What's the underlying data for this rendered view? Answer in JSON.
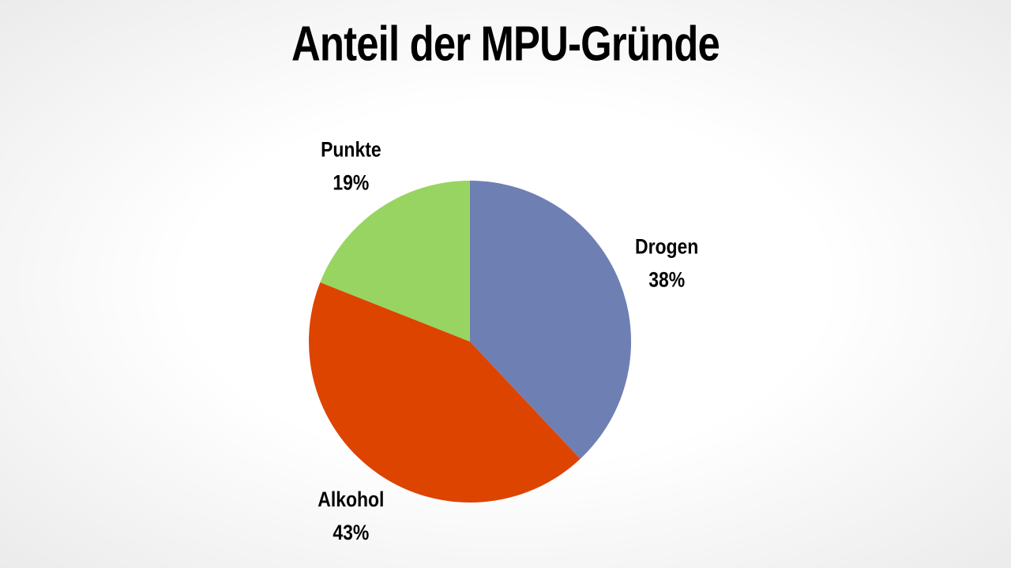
{
  "chart_data": {
    "type": "pie",
    "title": "Anteil der MPU-Gründe",
    "categories": [
      "Drogen",
      "Alkohol",
      "Punkte"
    ],
    "values": [
      38,
      43,
      19
    ],
    "value_labels": [
      "38%",
      "43%",
      "19%"
    ],
    "colors": [
      "#6e7fb3",
      "#dd4400",
      "#98d462"
    ]
  }
}
